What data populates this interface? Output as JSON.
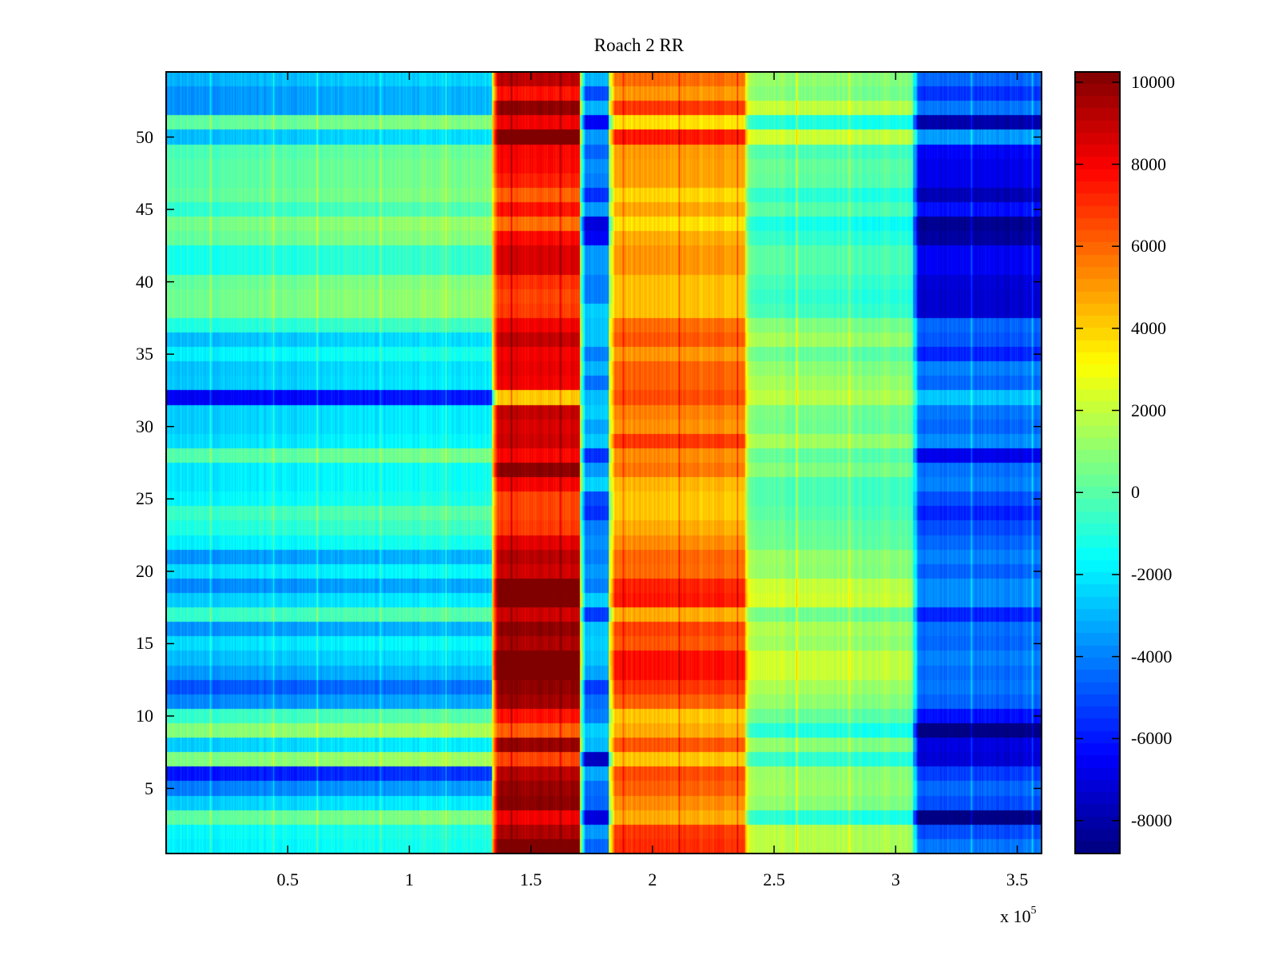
{
  "chart_data": {
    "type": "heatmap",
    "title": "Roach 2 RR",
    "xlabel": "",
    "ylabel": "",
    "x_multiplier_label": "x 10",
    "x_multiplier_exponent": "5",
    "xlim": [
      0,
      3.6
    ],
    "ylim": [
      0.5,
      54.5
    ],
    "n_rows": 54,
    "x_ticks": [
      0.5,
      1,
      1.5,
      2,
      2.5,
      3,
      3.5
    ],
    "x_tick_labels": [
      "0.5",
      "1",
      "1.5",
      "2",
      "2.5",
      "3",
      "3.5"
    ],
    "y_ticks": [
      5,
      10,
      15,
      20,
      25,
      30,
      35,
      40,
      45,
      50
    ],
    "y_tick_labels": [
      "5",
      "10",
      "15",
      "20",
      "25",
      "30",
      "35",
      "40",
      "45",
      "50"
    ],
    "colormap": "jet",
    "clim": [
      -8800,
      10250
    ],
    "colorbar_ticks": [
      10000,
      8000,
      6000,
      4000,
      2000,
      0,
      -2000,
      -4000,
      -6000,
      -8000
    ],
    "colorbar_tick_labels": [
      "10000",
      "8000",
      "6000",
      "4000",
      "2000",
      "0",
      "-2000",
      "-4000",
      "-6000",
      "-8000"
    ],
    "column_segments": [
      {
        "x_range": [
          0,
          1.34
        ],
        "base": -1200,
        "description": "mostly cyan/green background"
      },
      {
        "x_range": [
          1.34,
          1.7
        ],
        "base": 7600,
        "description": "strong red band"
      },
      {
        "x_range": [
          1.7,
          1.82
        ],
        "base": -2600,
        "description": "narrow cyan/blue gap"
      },
      {
        "x_range": [
          1.82,
          2.38
        ],
        "base": 4600,
        "description": "orange/yellow band"
      },
      {
        "x_range": [
          2.38,
          3.07
        ],
        "base": 1000,
        "description": "green/yellow region"
      },
      {
        "x_range": [
          3.07,
          3.6
        ],
        "base": -3000,
        "description": "blue/cyan region"
      }
    ],
    "row_offsets": [
      {
        "row": 54,
        "offsets": [
          -2000,
          1500,
          -500,
          1200,
          300,
          -1500
        ]
      },
      {
        "row": 53,
        "offsets": [
          -2600,
          0,
          -2500,
          400,
          0,
          -2500
        ]
      },
      {
        "row": 52,
        "offsets": [
          -2600,
          2400,
          -500,
          2200,
          1200,
          -1200
        ]
      },
      {
        "row": 51,
        "offsets": [
          1200,
          500,
          -4000,
          -1000,
          -1800,
          -5000
        ]
      },
      {
        "row": 50,
        "offsets": [
          -1800,
          3200,
          -1000,
          2800,
          1400,
          -500
        ]
      },
      {
        "row": 49,
        "offsets": [
          800,
          300,
          -2000,
          300,
          -1000,
          -3500
        ]
      },
      {
        "row": 48,
        "offsets": [
          1000,
          200,
          -1200,
          200,
          -500,
          -3800
        ]
      },
      {
        "row": 47,
        "offsets": [
          1000,
          -300,
          -1500,
          200,
          -600,
          -3800
        ]
      },
      {
        "row": 46,
        "offsets": [
          1200,
          -1500,
          -3000,
          -800,
          -1600,
          -4800
        ]
      },
      {
        "row": 45,
        "offsets": [
          300,
          0,
          -1000,
          100,
          -800,
          -3200
        ]
      },
      {
        "row": 44,
        "offsets": [
          1600,
          -1800,
          -4500,
          -1000,
          -2000,
          -5500
        ]
      },
      {
        "row": 43,
        "offsets": [
          1300,
          200,
          -4000,
          0,
          -1500,
          -5200
        ]
      },
      {
        "row": 42,
        "offsets": [
          -200,
          1000,
          -1000,
          400,
          -800,
          -3600
        ]
      },
      {
        "row": 41,
        "offsets": [
          -200,
          1000,
          -1000,
          400,
          -800,
          -3600
        ]
      },
      {
        "row": 40,
        "offsets": [
          1300,
          -600,
          -1500,
          -400,
          -1200,
          -4200
        ]
      },
      {
        "row": 39,
        "offsets": [
          1500,
          -1000,
          -1500,
          -400,
          -1500,
          -4300
        ]
      },
      {
        "row": 38,
        "offsets": [
          1500,
          -800,
          0,
          -400,
          -1200,
          -4300
        ]
      },
      {
        "row": 37,
        "offsets": [
          0,
          500,
          -200,
          1200,
          0,
          -1500
        ]
      },
      {
        "row": 36,
        "offsets": [
          -1800,
          1400,
          -200,
          1600,
          600,
          -1800
        ]
      },
      {
        "row": 35,
        "offsets": [
          -800,
          500,
          -1500,
          400,
          -500,
          -2800
        ]
      },
      {
        "row": 34,
        "offsets": [
          -1700,
          700,
          -500,
          1400,
          200,
          -1000
        ]
      },
      {
        "row": 33,
        "offsets": [
          -1600,
          500,
          -1800,
          1400,
          600,
          -1500
        ]
      },
      {
        "row": 32,
        "offsets": [
          -5500,
          -3500,
          -300,
          1800,
          1000,
          300
        ]
      },
      {
        "row": 31,
        "offsets": [
          -1500,
          1400,
          0,
          800,
          -200,
          -1200
        ]
      },
      {
        "row": 30,
        "offsets": [
          -1500,
          1000,
          -800,
          500,
          -300,
          -1500
        ]
      },
      {
        "row": 29,
        "offsets": [
          -1200,
          1200,
          -100,
          2200,
          600,
          -800
        ]
      },
      {
        "row": 28,
        "offsets": [
          1000,
          300,
          -3000,
          600,
          -600,
          -3800
        ]
      },
      {
        "row": 27,
        "offsets": [
          -1000,
          2500,
          -1000,
          1000,
          0,
          -1300
        ]
      },
      {
        "row": 26,
        "offsets": [
          -1000,
          400,
          100,
          -200,
          -1000,
          -1000
        ]
      },
      {
        "row": 25,
        "offsets": [
          -700,
          -1000,
          -2500,
          -500,
          -1000,
          -2000
        ]
      },
      {
        "row": 24,
        "offsets": [
          500,
          -1000,
          -3000,
          -500,
          -800,
          -2800
        ]
      },
      {
        "row": 23,
        "offsets": [
          0,
          -800,
          -1500,
          0,
          -500,
          -2000
        ]
      },
      {
        "row": 22,
        "offsets": [
          -800,
          800,
          -1200,
          600,
          -400,
          -1500
        ]
      },
      {
        "row": 21,
        "offsets": [
          -2600,
          1600,
          -1500,
          1300,
          400,
          -1000
        ]
      },
      {
        "row": 20,
        "offsets": [
          -1200,
          1200,
          -1000,
          1200,
          300,
          -1600
        ]
      },
      {
        "row": 19,
        "offsets": [
          -2800,
          3500,
          -1500,
          2600,
          1300,
          -800
        ]
      },
      {
        "row": 18,
        "offsets": [
          -1500,
          3000,
          0,
          2800,
          1500,
          -800
        ]
      },
      {
        "row": 17,
        "offsets": [
          400,
          1200,
          -2800,
          0,
          -300,
          -2800
        ]
      },
      {
        "row": 16,
        "offsets": [
          -2600,
          2400,
          -200,
          2000,
          800,
          -1300
        ]
      },
      {
        "row": 15,
        "offsets": [
          -1200,
          1800,
          0,
          1600,
          500,
          -1500
        ]
      },
      {
        "row": 14,
        "offsets": [
          -1800,
          3800,
          -200,
          3000,
          1400,
          -1000
        ]
      },
      {
        "row": 13,
        "offsets": [
          -2500,
          3800,
          -800,
          3000,
          1400,
          -1400
        ]
      },
      {
        "row": 12,
        "offsets": [
          -3800,
          2400,
          -2800,
          2200,
          700,
          -1200
        ]
      },
      {
        "row": 11,
        "offsets": [
          -2800,
          2000,
          -1800,
          1400,
          300,
          -1600
        ]
      },
      {
        "row": 10,
        "offsets": [
          400,
          0,
          -1500,
          -500,
          -500,
          -3200
        ]
      },
      {
        "row": 9,
        "offsets": [
          1900,
          -1500,
          0,
          0,
          -1800,
          -5800
        ]
      },
      {
        "row": 8,
        "offsets": [
          -1500,
          2200,
          -400,
          1600,
          200,
          -4000
        ]
      },
      {
        "row": 7,
        "offsets": [
          1800,
          -1000,
          -5000,
          -500,
          -1500,
          -4200
        ]
      },
      {
        "row": 6,
        "offsets": [
          -5000,
          1600,
          -700,
          1800,
          400,
          -2300
        ]
      },
      {
        "row": 5,
        "offsets": [
          -3000,
          2200,
          -1800,
          1400,
          500,
          -1500
        ]
      },
      {
        "row": 4,
        "offsets": [
          -1500,
          2500,
          -2000,
          600,
          200,
          -2000
        ]
      },
      {
        "row": 3,
        "offsets": [
          1200,
          500,
          -4500,
          0,
          -1700,
          -5800
        ]
      },
      {
        "row": 2,
        "offsets": [
          -600,
          1800,
          -1000,
          2200,
          1000,
          -2000
        ]
      },
      {
        "row": 1,
        "offsets": [
          -800,
          3000,
          -2000,
          2400,
          1000,
          -1200
        ]
      }
    ],
    "vertical_streaks_x": [
      0.18,
      0.44,
      0.62,
      0.88,
      1.15,
      1.42,
      1.62,
      1.88,
      2.11,
      2.35,
      2.59,
      2.81,
      3.08,
      3.31,
      3.56
    ]
  }
}
